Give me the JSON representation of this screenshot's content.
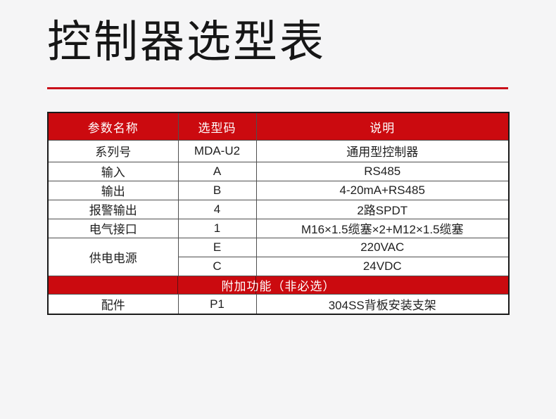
{
  "title": "控制器选型表",
  "colors": {
    "accent_red": "#cb0a0f",
    "title_rule_red": "#c9101a",
    "page_background": "#f5f5f6",
    "header_text": "#ffffff",
    "body_text": "#1f1f1f",
    "grid_line": "#4f4f4f"
  },
  "table": {
    "columns": [
      "参数名称",
      "选型码",
      "说明"
    ],
    "rows": [
      [
        "系列号",
        "MDA-U2",
        "通用型控制器"
      ],
      [
        "输入",
        "A",
        "RS485"
      ],
      [
        "输出",
        "B",
        "4-20mA+RS485"
      ],
      [
        "报警输出",
        "4",
        "2路SPDT"
      ],
      [
        "电气接口",
        "1",
        "M16×1.5缆塞×2+M12×1.5缆塞"
      ]
    ],
    "power": {
      "param": "供电电源",
      "options": [
        {
          "code": "E",
          "desc": "220VAC"
        },
        {
          "code": "C",
          "desc": "24VDC"
        }
      ]
    },
    "addon_banner": "附加功能（非必选）",
    "accessory": {
      "param": "配件",
      "code": "P1",
      "desc": "304SS背板安装支架"
    }
  }
}
